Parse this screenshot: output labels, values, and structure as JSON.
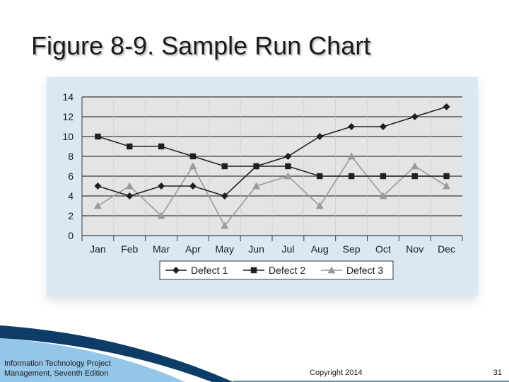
{
  "slide": {
    "title": "Figure 8-9. Sample Run Chart",
    "footer_line1": "Information Technology Project",
    "footer_line2": "Management, Seventh Edition",
    "copyright": "Copyright 2014",
    "page_number": "31"
  },
  "colors": {
    "panel_bg": "#d9e8f3",
    "plot_bg": "#e4e4e4",
    "defect1": "#1f1f1f",
    "defect2": "#1f1f1f",
    "defect3": "#9a9a9a",
    "swoosh_dark": "#0d3d66",
    "swoosh_light": "#6fb3e0"
  },
  "chart_data": {
    "type": "line",
    "title": "",
    "xlabel": "",
    "ylabel": "",
    "categories": [
      "Jan",
      "Feb",
      "Mar",
      "Apr",
      "May",
      "Jun",
      "Jul",
      "Aug",
      "Sep",
      "Oct",
      "Nov",
      "Dec"
    ],
    "ylim": [
      0,
      14
    ],
    "yticks": [
      "0",
      "2",
      "4",
      "6",
      "8",
      "10",
      "12",
      "14"
    ],
    "grid": "horizontal",
    "legend_position": "bottom",
    "series": [
      {
        "name": "Defect 1",
        "marker": "diamond",
        "values": [
          5,
          4,
          5,
          5,
          4,
          7,
          8,
          10,
          11,
          11,
          12,
          13
        ]
      },
      {
        "name": "Defect 2",
        "marker": "square",
        "values": [
          10,
          9,
          9,
          8,
          7,
          7,
          7,
          6,
          6,
          6,
          6,
          6
        ]
      },
      {
        "name": "Defect 3",
        "marker": "triangle",
        "values": [
          3,
          5,
          2,
          7,
          1,
          5,
          6,
          3,
          8,
          4,
          7,
          5
        ]
      }
    ]
  }
}
